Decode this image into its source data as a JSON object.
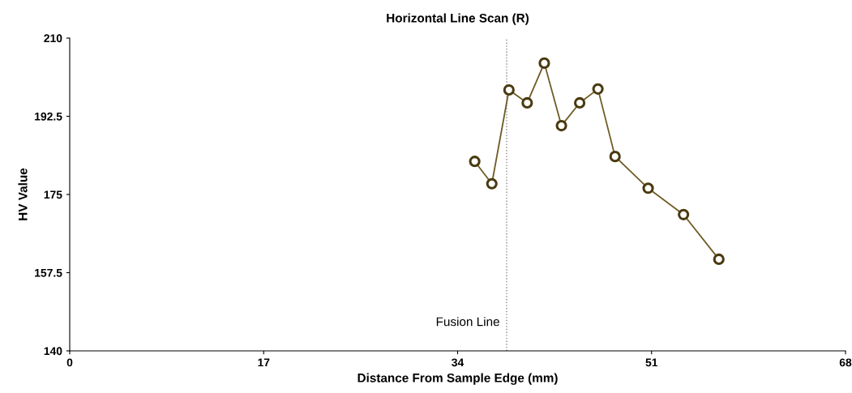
{
  "chart_data": {
    "type": "line",
    "title": "Horizontal Line Scan (R)",
    "xlabel": "Distance From Sample Edge (mm)",
    "ylabel": "HV Value",
    "x": [
      35.5,
      37.0,
      38.5,
      40.1,
      41.6,
      43.1,
      44.7,
      46.3,
      47.8,
      50.7,
      53.8,
      56.9
    ],
    "series": [
      {
        "color": "#6e5c24",
        "values": [
          182.4,
          177.4,
          198.4,
          195.5,
          204.4,
          190.4,
          195.5,
          198.6,
          183.5,
          176.4,
          170.5,
          160.5
        ]
      }
    ],
    "xlim": [
      0,
      68
    ],
    "xticks": [
      0,
      17,
      34,
      51,
      68
    ],
    "ylim": [
      140,
      210
    ],
    "yticks": [
      140,
      157.5,
      175,
      192.5,
      210
    ],
    "marker": "circle",
    "line_style": "solid",
    "grid": false,
    "ref_lines": [
      {
        "axis": "x",
        "value": 38.3,
        "label": "Fusion Line",
        "color": "#888888",
        "line_style": "dotted"
      }
    ]
  }
}
